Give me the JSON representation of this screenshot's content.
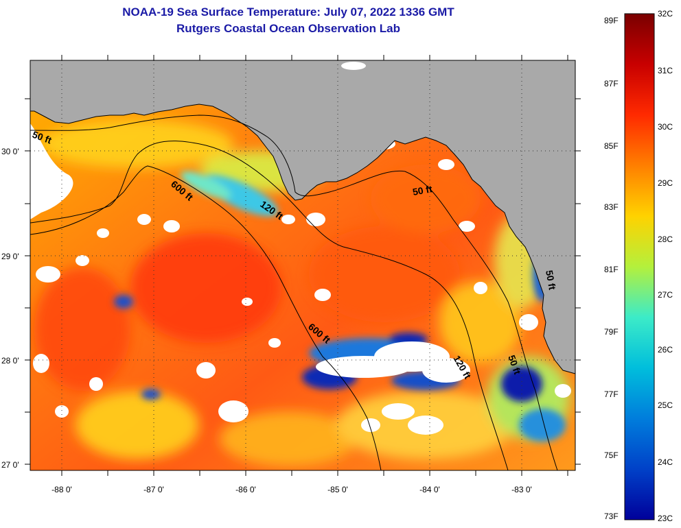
{
  "header": {
    "title": "NOAA-19 Sea Surface Temperature:  July 07, 2022 1336 GMT",
    "subtitle": "Rutgers Coastal Ocean Observation Lab"
  },
  "axes": {
    "lat_labels": [
      "30 0'",
      "29 0'",
      "28 0'",
      "27 0'"
    ],
    "lon_labels": [
      "-88 0'",
      "-87 0'",
      "-86 0'",
      "-85 0'",
      "-84 0'",
      "-83 0'"
    ]
  },
  "contours": {
    "c50": "50 ft",
    "c600": "600 ft",
    "c120": "120 ft"
  },
  "colorbar": {
    "fahrenheit": [
      "89F",
      "87F",
      "85F",
      "83F",
      "81F",
      "79F",
      "77F",
      "75F",
      "73F"
    ],
    "celsius": [
      "32C",
      "31C",
      "30C",
      "29C",
      "28C",
      "27C",
      "26C",
      "25C",
      "24C",
      "23C"
    ],
    "gradient": [
      "#7a0000",
      "#c80000",
      "#ff2a00",
      "#ff7f00",
      "#ffd200",
      "#b4f03c",
      "#3cebc8",
      "#00bedc",
      "#007ddc",
      "#0041c8",
      "#00009a"
    ]
  },
  "colors": {
    "land": "#a9a9a9",
    "cloud": "#ffffff",
    "title": "#1a1aa6"
  }
}
